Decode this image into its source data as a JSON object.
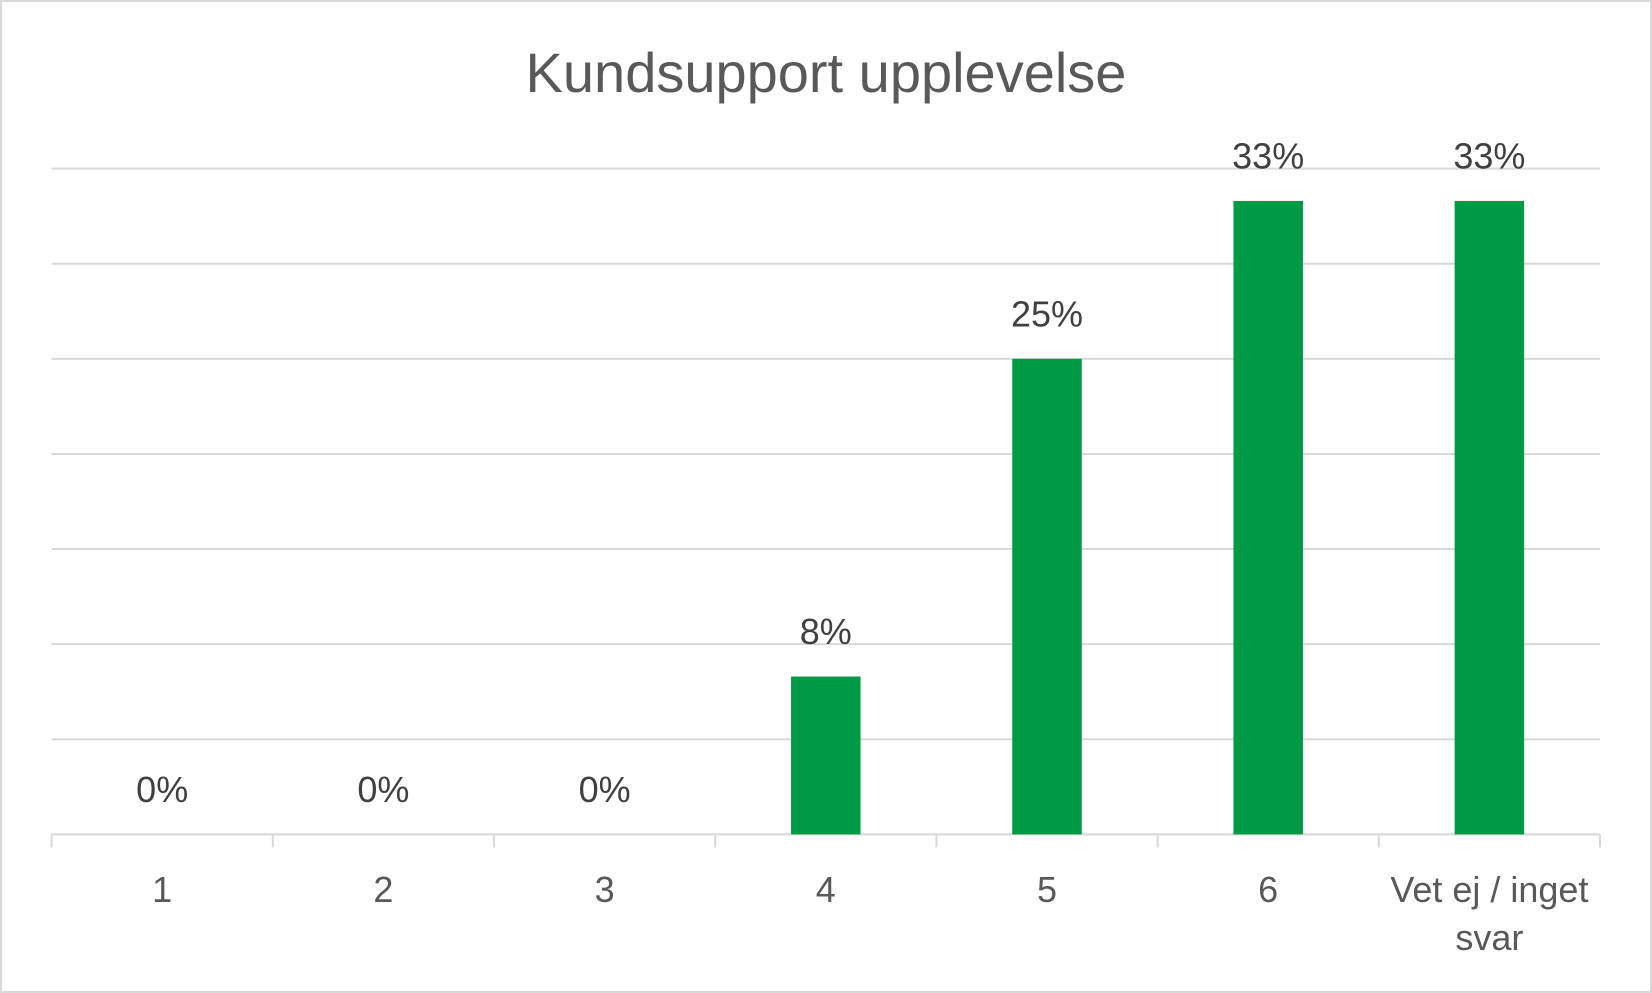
{
  "chart_data": {
    "type": "bar",
    "title": "Kundsupport upplevelse",
    "categories": [
      "1",
      "2",
      "3",
      "4",
      "5",
      "6",
      "Vet ej / inget svar"
    ],
    "values": [
      0,
      0,
      0,
      8.3,
      25,
      33.3,
      33.3
    ],
    "value_labels": [
      "0%",
      "0%",
      "0%",
      "8%",
      "25%",
      "33%",
      "33%"
    ],
    "color": "#009a44",
    "ylim": [
      0,
      35
    ],
    "yticks": [
      0,
      5,
      10,
      15,
      20,
      25,
      30,
      35
    ],
    "grid": true
  }
}
